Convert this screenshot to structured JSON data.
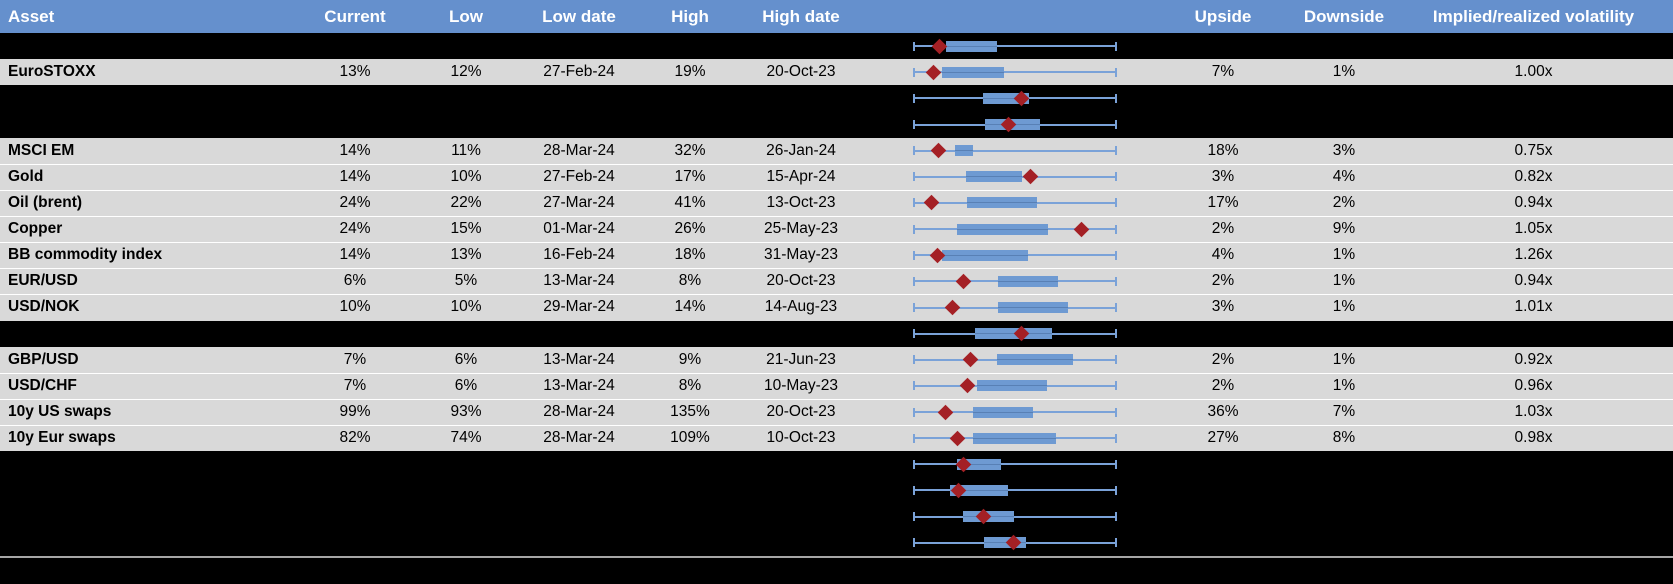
{
  "colors": {
    "header_bg": "#6590CD",
    "header_text": "#FFFFFF",
    "row_gray": "#D9D9D9",
    "row_black": "#000000",
    "box_fill": "#6E9AD2",
    "whisker_blue": "#7AA2D8",
    "marker_red": "#A42025",
    "separator_gray": "#A6A6A6"
  },
  "columns": {
    "asset": "Asset",
    "current": "Current",
    "low": "Low",
    "low_date": "Low date",
    "high": "High",
    "high_date": "High date",
    "chart": "",
    "upside": "Upside",
    "downside": "Downside",
    "impl": "Implied/realized volatility"
  },
  "rows": [
    {
      "type": "spacer",
      "box": {
        "lo": 0.162,
        "hi": 0.412,
        "marker": 0.132
      }
    },
    {
      "type": "data",
      "asset": "EuroSTOXX",
      "current": "13%",
      "low": "12%",
      "low_date": "27-Feb-24",
      "high": "19%",
      "high_date": "20-Oct-23",
      "upside": "7%",
      "downside": "1%",
      "impl": "1.00x",
      "box": {
        "lo": 0.142,
        "hi": 0.446,
        "marker": 0.098
      }
    },
    {
      "type": "spacer",
      "box": {
        "lo": 0.343,
        "hi": 0.569,
        "marker": 0.534
      }
    },
    {
      "type": "spacer",
      "box": {
        "lo": 0.353,
        "hi": 0.623,
        "marker": 0.466
      }
    },
    {
      "type": "data",
      "asset": "MSCI EM",
      "current": "14%",
      "low": "11%",
      "low_date": "28-Mar-24",
      "high": "32%",
      "high_date": "26-Jan-24",
      "upside": "18%",
      "downside": "3%",
      "impl": "0.75x",
      "box": {
        "lo": 0.206,
        "hi": 0.294,
        "marker": 0.123
      }
    },
    {
      "type": "data",
      "asset": "Gold",
      "current": "14%",
      "low": "10%",
      "low_date": "27-Feb-24",
      "high": "17%",
      "high_date": "15-Apr-24",
      "upside": "3%",
      "downside": "4%",
      "impl": "0.82x",
      "box": {
        "lo": 0.26,
        "hi": 0.534,
        "marker": 0.578
      }
    },
    {
      "type": "data",
      "asset": "Oil (brent)",
      "current": "24%",
      "low": "22%",
      "low_date": "27-Mar-24",
      "high": "41%",
      "high_date": "13-Oct-23",
      "upside": "17%",
      "downside": "2%",
      "impl": "0.94x",
      "box": {
        "lo": 0.265,
        "hi": 0.608,
        "marker": 0.088
      }
    },
    {
      "type": "data",
      "asset": "Copper",
      "current": "24%",
      "low": "15%",
      "low_date": "01-Mar-24",
      "high": "26%",
      "high_date": "25-May-23",
      "upside": "2%",
      "downside": "9%",
      "impl": "1.05x",
      "box": {
        "lo": 0.216,
        "hi": 0.662,
        "marker": 0.828
      }
    },
    {
      "type": "data",
      "asset": "BB commodity index",
      "current": "14%",
      "low": "13%",
      "low_date": "16-Feb-24",
      "high": "18%",
      "high_date": "31-May-23",
      "upside": "4%",
      "downside": "1%",
      "impl": "1.26x",
      "box": {
        "lo": 0.142,
        "hi": 0.564,
        "marker": 0.118
      }
    },
    {
      "type": "data",
      "asset": "EUR/USD",
      "current": "6%",
      "low": "5%",
      "low_date": "13-Mar-24",
      "high": "8%",
      "high_date": "20-Oct-23",
      "upside": "2%",
      "downside": "1%",
      "impl": "0.94x",
      "box": {
        "lo": 0.417,
        "hi": 0.711,
        "marker": 0.245
      }
    },
    {
      "type": "data",
      "asset": "USD/NOK",
      "current": "10%",
      "low": "10%",
      "low_date": "29-Mar-24",
      "high": "14%",
      "high_date": "14-Aug-23",
      "upside": "3%",
      "downside": "1%",
      "impl": "1.01x",
      "box": {
        "lo": 0.417,
        "hi": 0.76,
        "marker": 0.191
      }
    },
    {
      "type": "spacer",
      "box": {
        "lo": 0.304,
        "hi": 0.681,
        "marker": 0.534
      }
    },
    {
      "type": "data",
      "asset": "GBP/USD",
      "current": "7%",
      "low": "6%",
      "low_date": "13-Mar-24",
      "high": "9%",
      "high_date": "21-Jun-23",
      "upside": "2%",
      "downside": "1%",
      "impl": "0.92x",
      "box": {
        "lo": 0.412,
        "hi": 0.784,
        "marker": 0.284
      }
    },
    {
      "type": "data",
      "asset": "USD/CHF",
      "current": "7%",
      "low": "6%",
      "low_date": "13-Mar-24",
      "high": "8%",
      "high_date": "10-May-23",
      "upside": "2%",
      "downside": "1%",
      "impl": "0.96x",
      "box": {
        "lo": 0.314,
        "hi": 0.657,
        "marker": 0.265
      }
    },
    {
      "type": "data",
      "asset": "10y US swaps",
      "current": "99%",
      "low": "93%",
      "low_date": "28-Mar-24",
      "high": "135%",
      "high_date": "20-Oct-23",
      "upside": "36%",
      "downside": "7%",
      "impl": "1.03x",
      "box": {
        "lo": 0.294,
        "hi": 0.588,
        "marker": 0.157
      }
    },
    {
      "type": "data",
      "asset": "10y Eur swaps",
      "current": "82%",
      "low": "74%",
      "low_date": "28-Mar-24",
      "high": "109%",
      "high_date": "10-Oct-23",
      "upside": "27%",
      "downside": "8%",
      "impl": "0.98x",
      "box": {
        "lo": 0.294,
        "hi": 0.701,
        "marker": 0.216
      }
    },
    {
      "type": "spacer",
      "box": {
        "lo": 0.216,
        "hi": 0.431,
        "marker": 0.245
      }
    },
    {
      "type": "spacer",
      "box": {
        "lo": 0.181,
        "hi": 0.466,
        "marker": 0.221
      }
    },
    {
      "type": "spacer",
      "box": {
        "lo": 0.245,
        "hi": 0.495,
        "marker": 0.343
      }
    },
    {
      "type": "spacer",
      "box": {
        "lo": 0.348,
        "hi": 0.554,
        "marker": 0.49
      }
    }
  ]
}
